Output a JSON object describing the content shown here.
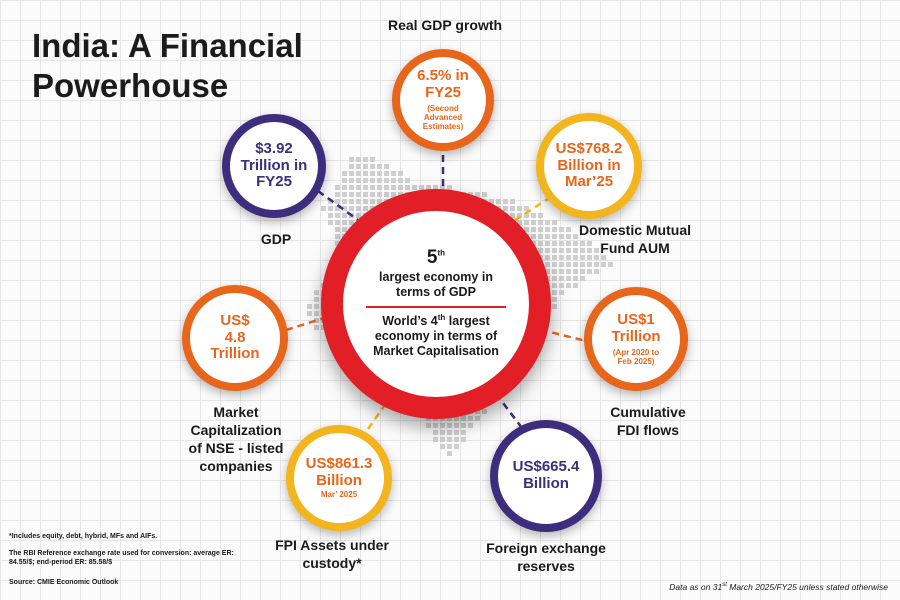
{
  "title": "India: A Financial Powerhouse",
  "colors": {
    "navy": "#3d2e7d",
    "orange": "#e8661b",
    "yellow": "#f3b51e",
    "red": "#e21f26"
  },
  "center": {
    "rank_number": "5",
    "rank_suffix": "th",
    "line1": "largest economy in terms of GDP",
    "line2_prefix": "World’s 4",
    "line2_suffix": "th",
    "line2_rest": " largest economy in terms of Market Capitalisation"
  },
  "metrics": {
    "gdp": {
      "value": "$3.92 Trillion in FY25",
      "label": "GDP"
    },
    "real_gdp": {
      "value": "6.5% in FY25",
      "note": "(Second Advanced Estimates)",
      "label": "Real GDP growth"
    },
    "mf_aum": {
      "value": "US$768.2 Billion in Mar’25",
      "label": "Domestic Mutual Fund AUM"
    },
    "fdi": {
      "value": "US$1 Trillion",
      "note": "(Apr 2020 to Feb 2025)",
      "label": "Cumulative FDI flows"
    },
    "forex": {
      "value": "US$665.4 Billion",
      "label": "Foreign exchange reserves"
    },
    "fpi": {
      "value": "US$861.3 Billion",
      "note": "Mar’ 2025",
      "label": "FPI Assets under custody*"
    },
    "mcap": {
      "value": "US$ 4.8 Trillion",
      "label": "Market Capitalization of NSE - listed companies"
    }
  },
  "footnotes": {
    "includes": "*Includes equity, debt, hybrid, MFs and AIFs.",
    "exchange_rate": "The RBI Reference exchange rate used for conversion: average ER: 84.55/$; end-period ER: 85.58/$",
    "source": "Source: CMIE Economic Outlook"
  },
  "data_note": {
    "prefix": "Data as on 31",
    "suffix": "st",
    "rest": " March 2025/FY25 unless stated otherwise"
  }
}
